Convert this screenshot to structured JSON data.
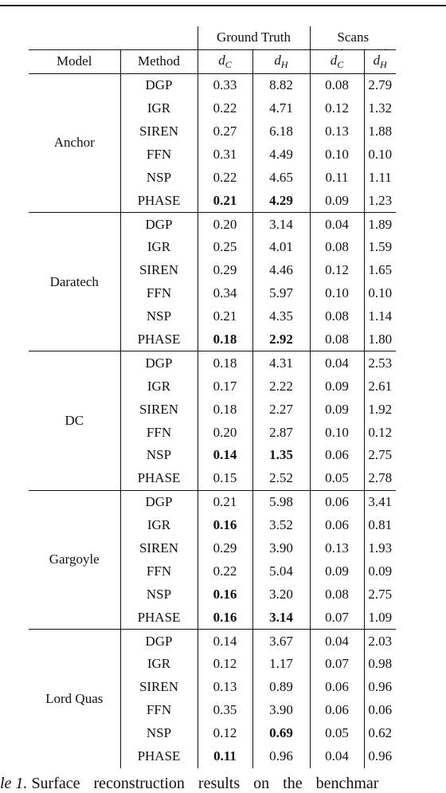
{
  "header": {
    "group_ground_truth": "Ground Truth",
    "group_scans": "Scans",
    "col_model": "Model",
    "col_method": "Method",
    "col_dc": {
      "symbol": "d",
      "sub": "C"
    },
    "col_dh": {
      "symbol": "d",
      "sub": "H"
    },
    "col_scan_dc": {
      "symbol": "d",
      "sub": "C",
      "arrow": "→"
    },
    "col_scan_dh": {
      "symbol": "d",
      "sub": "H",
      "arrow": "→"
    }
  },
  "groups": [
    {
      "model": "Anchor",
      "rows": [
        {
          "method": "DGP",
          "gt_dc": "0.33",
          "gt_dh": "8.82",
          "sc_dc": "0.08",
          "sc_dh": "2.79"
        },
        {
          "method": "IGR",
          "gt_dc": "0.22",
          "gt_dh": "4.71",
          "sc_dc": "0.12",
          "sc_dh": "1.32"
        },
        {
          "method": "SIREN",
          "gt_dc": "0.27",
          "gt_dh": "6.18",
          "sc_dc": "0.13",
          "sc_dh": "1.88"
        },
        {
          "method": "FFN",
          "gt_dc": "0.31",
          "gt_dh": "4.49",
          "sc_dc": "0.10",
          "sc_dh": "0.10"
        },
        {
          "method": "NSP",
          "gt_dc": "0.22",
          "gt_dh": "4.65",
          "sc_dc": "0.11",
          "sc_dh": "1.11"
        },
        {
          "method": "PHASE",
          "gt_dc": "0.21",
          "gt_dh": "4.29",
          "sc_dc": "0.09",
          "sc_dh": "1.23",
          "bold": [
            "gt_dc",
            "gt_dh"
          ]
        }
      ]
    },
    {
      "model": "Daratech",
      "rows": [
        {
          "method": "DGP",
          "gt_dc": "0.20",
          "gt_dh": "3.14",
          "sc_dc": "0.04",
          "sc_dh": "1.89"
        },
        {
          "method": "IGR",
          "gt_dc": "0.25",
          "gt_dh": "4.01",
          "sc_dc": "0.08",
          "sc_dh": "1.59"
        },
        {
          "method": "SIREN",
          "gt_dc": "0.29",
          "gt_dh": "4.46",
          "sc_dc": "0.12",
          "sc_dh": "1.65"
        },
        {
          "method": "FFN",
          "gt_dc": "0.34",
          "gt_dh": "5.97",
          "sc_dc": "0.10",
          "sc_dh": "0.10"
        },
        {
          "method": "NSP",
          "gt_dc": "0.21",
          "gt_dh": "4.35",
          "sc_dc": "0.08",
          "sc_dh": "1.14"
        },
        {
          "method": "PHASE",
          "gt_dc": "0.18",
          "gt_dh": "2.92",
          "sc_dc": "0.08",
          "sc_dh": "1.80",
          "bold": [
            "gt_dc",
            "gt_dh"
          ]
        }
      ]
    },
    {
      "model": "DC",
      "rows": [
        {
          "method": "DGP",
          "gt_dc": "0.18",
          "gt_dh": "4.31",
          "sc_dc": "0.04",
          "sc_dh": "2.53"
        },
        {
          "method": "IGR",
          "gt_dc": "0.17",
          "gt_dh": "2.22",
          "sc_dc": "0.09",
          "sc_dh": "2.61"
        },
        {
          "method": "SIREN",
          "gt_dc": "0.18",
          "gt_dh": "2.27",
          "sc_dc": "0.09",
          "sc_dh": "1.92"
        },
        {
          "method": "FFN",
          "gt_dc": "0.20",
          "gt_dh": "2.87",
          "sc_dc": "0.10",
          "sc_dh": "0.12"
        },
        {
          "method": "NSP",
          "gt_dc": "0.14",
          "gt_dh": "1.35",
          "sc_dc": "0.06",
          "sc_dh": "2.75",
          "bold": [
            "gt_dc",
            "gt_dh"
          ]
        },
        {
          "method": "PHASE",
          "gt_dc": "0.15",
          "gt_dh": "2.52",
          "sc_dc": "0.05",
          "sc_dh": "2.78"
        }
      ]
    },
    {
      "model": "Gargoyle",
      "rows": [
        {
          "method": "DGP",
          "gt_dc": "0.21",
          "gt_dh": "5.98",
          "sc_dc": "0.06",
          "sc_dh": "3.41"
        },
        {
          "method": "IGR",
          "gt_dc": "0.16",
          "gt_dh": "3.52",
          "sc_dc": "0.06",
          "sc_dh": "0.81",
          "bold": [
            "gt_dc"
          ]
        },
        {
          "method": "SIREN",
          "gt_dc": "0.29",
          "gt_dh": "3.90",
          "sc_dc": "0.13",
          "sc_dh": "1.93"
        },
        {
          "method": "FFN",
          "gt_dc": "0.22",
          "gt_dh": "5.04",
          "sc_dc": "0.09",
          "sc_dh": "0.09"
        },
        {
          "method": "NSP",
          "gt_dc": "0.16",
          "gt_dh": "3.20",
          "sc_dc": "0.08",
          "sc_dh": "2.75",
          "bold": [
            "gt_dc"
          ]
        },
        {
          "method": "PHASE",
          "gt_dc": "0.16",
          "gt_dh": "3.14",
          "sc_dc": "0.07",
          "sc_dh": "1.09",
          "bold": [
            "gt_dc",
            "gt_dh"
          ]
        }
      ]
    },
    {
      "model": "Lord Quas",
      "rows": [
        {
          "method": "DGP",
          "gt_dc": "0.14",
          "gt_dh": "3.67",
          "sc_dc": "0.04",
          "sc_dh": "2.03"
        },
        {
          "method": "IGR",
          "gt_dc": "0.12",
          "gt_dh": "1.17",
          "sc_dc": "0.07",
          "sc_dh": "0.98"
        },
        {
          "method": "SIREN",
          "gt_dc": "0.13",
          "gt_dh": "0.89",
          "sc_dc": "0.06",
          "sc_dh": "0.96"
        },
        {
          "method": "FFN",
          "gt_dc": "0.35",
          "gt_dh": "3.90",
          "sc_dc": "0.06",
          "sc_dh": "0.06"
        },
        {
          "method": "NSP",
          "gt_dc": "0.12",
          "gt_dh": "0.69",
          "sc_dc": "0.05",
          "sc_dh": "0.62",
          "bold": [
            "gt_dh"
          ]
        },
        {
          "method": "PHASE",
          "gt_dc": "0.11",
          "gt_dh": "0.96",
          "sc_dc": "0.04",
          "sc_dh": "0.96",
          "bold": [
            "gt_dc"
          ]
        }
      ]
    }
  ],
  "caption": {
    "label": "le 1.",
    "text": "Surface reconstruction results on the benchmar"
  }
}
